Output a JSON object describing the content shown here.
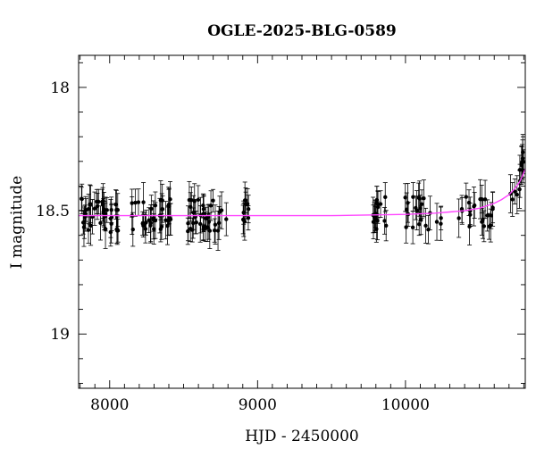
{
  "chart_data": {
    "type": "scatter",
    "title": "OGLE-2025-BLG-0589",
    "xlabel": "HJD - 2450000",
    "ylabel": "I magnitude",
    "xlim": [
      7790,
      10810
    ],
    "ylim": [
      19.22,
      17.87
    ],
    "y_inverted": true,
    "x_ticks": [
      8000,
      9000,
      10000
    ],
    "x_tick_labels": [
      "8000",
      "9000",
      "10000"
    ],
    "y_ticks": [
      18,
      18.5,
      19
    ],
    "y_tick_labels": [
      "18",
      "18.5",
      "19"
    ],
    "grid": false,
    "marker_color": "#000000",
    "model_color": "#ff44ff",
    "observing_seasons": [
      {
        "x_start": 7800,
        "x_end": 8070,
        "mean_mag": 18.52,
        "n_points": 40
      },
      {
        "x_start": 8150,
        "x_end": 8430,
        "mean_mag": 18.52,
        "n_points": 36
      },
      {
        "x_start": 8520,
        "x_end": 8800,
        "mean_mag": 18.52,
        "n_points": 36
      },
      {
        "x_start": 8880,
        "x_end": 8940,
        "mean_mag": 18.52,
        "n_points": 10
      },
      {
        "x_start": 9780,
        "x_end": 9870,
        "mean_mag": 18.51,
        "n_points": 16
      },
      {
        "x_start": 9980,
        "x_end": 10250,
        "mean_mag": 18.51,
        "n_points": 22
      },
      {
        "x_start": 10360,
        "x_end": 10600,
        "mean_mag": 18.5,
        "n_points": 22
      },
      {
        "x_start": 10700,
        "x_end": 10800,
        "mean_mag": 18.4,
        "n_points": 14
      }
    ],
    "model_curve": {
      "x": [
        7790,
        8500,
        9000,
        9500,
        10000,
        10200,
        10400,
        10500,
        10600,
        10650,
        10700,
        10740,
        10770,
        10790,
        10800,
        10810
      ],
      "y": [
        18.52,
        18.52,
        18.52,
        18.52,
        18.515,
        18.51,
        18.5,
        18.49,
        18.47,
        18.455,
        18.435,
        18.41,
        18.385,
        18.36,
        18.345,
        18.33
      ]
    }
  }
}
